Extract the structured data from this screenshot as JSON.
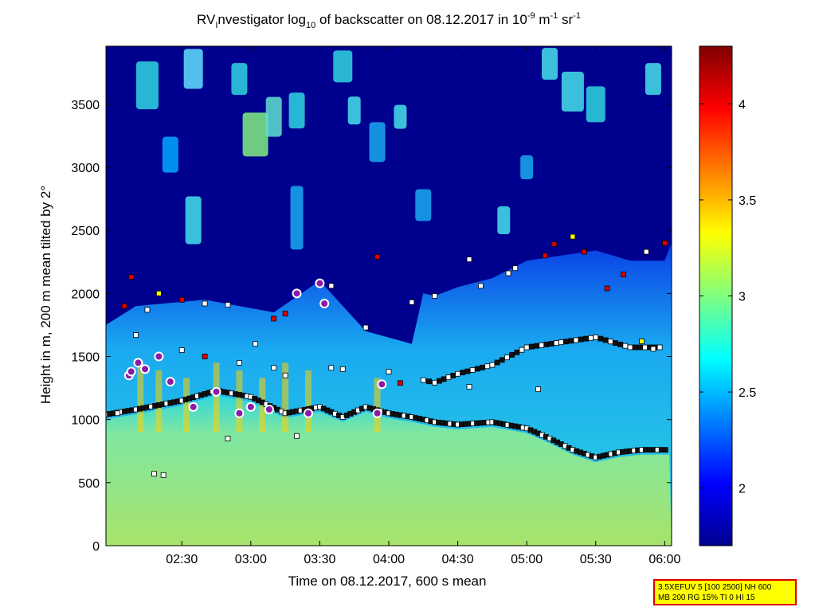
{
  "chart_data": {
    "type": "heatmap",
    "title_parts": {
      "prefix": "RV",
      "sub_i": "I",
      "after_i": "nvestigator log",
      "sub_10": "10",
      "mid": " of backscatter on 08.12.2017 in 10",
      "sup1": "-9",
      "m": " m",
      "sup2": "-1",
      "sr": " sr",
      "sup3": "-1"
    },
    "xlabel": "Time on 08.12.2017, 600 s mean",
    "ylabel": "Height in m, 200 m mean tilted by 2°",
    "x_range": [
      "01:57",
      "06:03"
    ],
    "x_ticks": [
      "02:30",
      "03:00",
      "03:30",
      "04:00",
      "04:30",
      "05:00",
      "05:30",
      "06:00"
    ],
    "y_range": [
      0,
      3960
    ],
    "y_ticks": [
      "0",
      "500",
      "1000",
      "1500",
      "2000",
      "2500",
      "3000",
      "3500"
    ],
    "colorbar": {
      "range": [
        1.7,
        4.3
      ],
      "ticks": [
        "2",
        "2.5",
        "3",
        "3.5",
        "4"
      ],
      "colormap": "jet"
    },
    "layers": {
      "surface_layer_level": 2.9,
      "aerosol_top_height_m": 1200,
      "background_level": 1.8
    },
    "layer_base_line": [
      [
        "01:57",
        1040
      ],
      [
        "02:10",
        1080
      ],
      [
        "02:30",
        1150
      ],
      [
        "02:45",
        1230
      ],
      [
        "03:00",
        1180
      ],
      [
        "03:15",
        1050
      ],
      [
        "03:30",
        1100
      ],
      [
        "03:40",
        1020
      ],
      [
        "03:50",
        1100
      ],
      [
        "04:00",
        1050
      ],
      [
        "04:10",
        1020
      ],
      [
        "04:20",
        980
      ],
      [
        "04:30",
        960
      ],
      [
        "04:45",
        980
      ],
      [
        "05:00",
        930
      ],
      [
        "05:10",
        850
      ],
      [
        "05:20",
        760
      ],
      [
        "05:30",
        700
      ],
      [
        "05:40",
        740
      ],
      [
        "05:50",
        760
      ],
      [
        "06:02",
        760
      ]
    ],
    "upper_marker_line": [
      [
        "04:15",
        1300
      ],
      [
        "04:20",
        1280
      ],
      [
        "04:30",
        1350
      ],
      [
        "04:45",
        1420
      ],
      [
        "05:00",
        1560
      ],
      [
        "05:15",
        1600
      ],
      [
        "05:30",
        1640
      ],
      [
        "05:45",
        1560
      ],
      [
        "06:00",
        1560
      ]
    ],
    "circles": [
      [
        "02:07",
        1350
      ],
      [
        "02:08",
        1380
      ],
      [
        "02:11",
        1450
      ],
      [
        "02:14",
        1400
      ],
      [
        "02:20",
        1500
      ],
      [
        "02:25",
        1300
      ],
      [
        "02:35",
        1100
      ],
      [
        "02:45",
        1220
      ],
      [
        "02:55",
        1050
      ],
      [
        "03:00",
        1100
      ],
      [
        "03:08",
        1080
      ],
      [
        "03:20",
        2000
      ],
      [
        "03:25",
        1050
      ],
      [
        "03:30",
        2080
      ],
      [
        "03:32",
        1920
      ],
      [
        "03:55",
        1050
      ],
      [
        "03:57",
        1280
      ]
    ]
  },
  "info_box": {
    "line1": "3.5XEFUV 5 [100 2500] NH 600",
    "line2": "MB 200 RG 15% TI 0 HI 15"
  },
  "colors": {
    "background": "#00008f",
    "marker_black": "#000000",
    "marker_white": "#ffffff",
    "marker_red": "#e00000",
    "circle_fill": "#8a1aa8"
  }
}
